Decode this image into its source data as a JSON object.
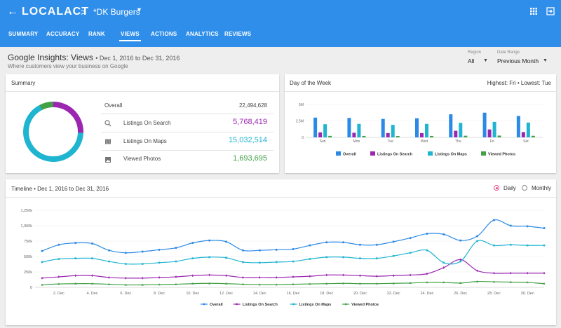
{
  "topbar": {
    "logo": "LOCALACT",
    "crumb_sep": ">",
    "business_name": "*DK Burgers",
    "tabs": [
      {
        "label": "SUMMARY",
        "active": false
      },
      {
        "label": "ACCURACY",
        "active": false
      },
      {
        "label": "RANK",
        "active": false
      },
      {
        "label": "VIEWS",
        "active": true
      },
      {
        "label": "ACTIONS",
        "active": false
      },
      {
        "label": "ANALYTICS",
        "active": false
      },
      {
        "label": "REVIEWS",
        "active": false
      }
    ]
  },
  "header": {
    "title": "Google Insights: Views",
    "date_range": "• Dec 1, 2016 to Dec 31, 2016",
    "subtitle": "Where customers view your business on Google"
  },
  "filters": {
    "region_label": "Region",
    "region_value": "All",
    "daterange_label": "Date Range",
    "daterange_value": "Previous Month"
  },
  "summary": {
    "title": "Summary",
    "overall_label": "Overall",
    "overall_value": "22,494,628",
    "rows": [
      {
        "label": "Listings On Search",
        "value": "5,768,419",
        "color": "#9b27b0",
        "icon": "search-icon"
      },
      {
        "label": "Listings On Maps",
        "value": "15,032,514",
        "color": "#1fb5d1",
        "icon": "map-icon"
      },
      {
        "label": "Viewed Photos",
        "value": "1,693,695",
        "color": "#43a047",
        "icon": "photo-icon"
      }
    ]
  },
  "colors": {
    "overall": "#2b8ae6",
    "search": "#9b27b0",
    "maps": "#1fb5d1",
    "photos": "#43a047",
    "accent": "#2f8eea"
  },
  "dow": {
    "title": "Day of the Week",
    "highlight": "Highest: Fri • Lowest: Tue"
  },
  "timeline": {
    "title": "Timeline • Dec 1, 2016 to Dec 31, 2016",
    "daily_label": "Daily",
    "monthly_label": "Monthly",
    "selected": "Daily"
  },
  "chart_data": [
    {
      "type": "pie",
      "categories": [
        "Listings On Search",
        "Listings On Maps",
        "Viewed Photos"
      ],
      "values": [
        5768419,
        15032514,
        1693695
      ]
    },
    {
      "type": "bar",
      "categories": [
        "Sun",
        "Mon",
        "Tue",
        "Wed",
        "Thu",
        "Fri",
        "Sat"
      ],
      "y_ticks": [
        "5M",
        "2.5M",
        "0"
      ],
      "ylim": [
        0,
        5000000
      ],
      "legend": "bottom",
      "series": [
        {
          "name": "Overall",
          "values": [
            3000000,
            2950000,
            2800000,
            2900000,
            3500000,
            3750000,
            3250000
          ]
        },
        {
          "name": "Listings On Search",
          "values": [
            750000,
            700000,
            650000,
            650000,
            1000000,
            1200000,
            800000
          ]
        },
        {
          "name": "Listings On Maps",
          "values": [
            2000000,
            2050000,
            1900000,
            2050000,
            2200000,
            2350000,
            2250000
          ]
        },
        {
          "name": "Viewed Photos",
          "values": [
            230000,
            220000,
            210000,
            220000,
            250000,
            270000,
            240000
          ]
        }
      ]
    },
    {
      "type": "line",
      "x": [
        "1. Dec",
        "2. Dec",
        "3. Dec",
        "4. Dec",
        "5. Dec",
        "6. Dec",
        "7. Dec",
        "8. Dec",
        "9. Dec",
        "10. Dec",
        "11. Dec",
        "12. Dec",
        "13. Dec",
        "14. Dec",
        "15. Dec",
        "16. Dec",
        "17. Dec",
        "18. Dec",
        "19. Dec",
        "20. Dec",
        "21. Dec",
        "22. Dec",
        "23. Dec",
        "24. Dec",
        "25. Dec",
        "26. Dec",
        "27. Dec",
        "28. Dec",
        "29. Dec",
        "30. Dec",
        "31. Dec"
      ],
      "x_tick_labels": [
        "2. Dec",
        "4. Dec",
        "6. Dec",
        "8. Dec",
        "10. Dec",
        "12. Dec",
        "14. Dec",
        "16. Dec",
        "18. Dec",
        "20. Dec",
        "22. Dec",
        "24. Dec",
        "26. Dec",
        "28. Dec",
        "30. Dec"
      ],
      "y_tick_labels": [
        "1,250k",
        "1,000k",
        "750k",
        "500k",
        "250k",
        "0"
      ],
      "ylim": [
        0,
        1250000
      ],
      "legend": "bottom",
      "series": [
        {
          "name": "Overall",
          "values": [
            590000,
            690000,
            720000,
            710000,
            600000,
            560000,
            580000,
            610000,
            640000,
            720000,
            760000,
            740000,
            600000,
            600000,
            610000,
            620000,
            680000,
            730000,
            730000,
            690000,
            690000,
            740000,
            800000,
            870000,
            860000,
            760000,
            830000,
            1090000,
            1000000,
            990000,
            960000
          ]
        },
        {
          "name": "Listings On Search",
          "values": [
            150000,
            170000,
            190000,
            190000,
            160000,
            150000,
            150000,
            160000,
            170000,
            190000,
            200000,
            190000,
            160000,
            160000,
            160000,
            170000,
            180000,
            200000,
            200000,
            190000,
            180000,
            190000,
            200000,
            220000,
            320000,
            450000,
            270000,
            230000,
            230000,
            230000,
            230000
          ]
        },
        {
          "name": "Listings On Maps",
          "values": [
            410000,
            460000,
            470000,
            470000,
            420000,
            380000,
            380000,
            400000,
            420000,
            470000,
            490000,
            480000,
            410000,
            400000,
            410000,
            420000,
            460000,
            490000,
            490000,
            470000,
            470000,
            510000,
            560000,
            600000,
            400000,
            420000,
            750000,
            680000,
            690000,
            680000,
            680000
          ]
        },
        {
          "name": "Viewed Photos",
          "values": [
            40000,
            55000,
            60000,
            60000,
            50000,
            40000,
            40000,
            45000,
            50000,
            60000,
            65000,
            60000,
            50000,
            45000,
            45000,
            50000,
            55000,
            60000,
            65000,
            60000,
            60000,
            65000,
            70000,
            80000,
            80000,
            70000,
            95000,
            90000,
            85000,
            80000,
            60000
          ]
        }
      ]
    }
  ]
}
